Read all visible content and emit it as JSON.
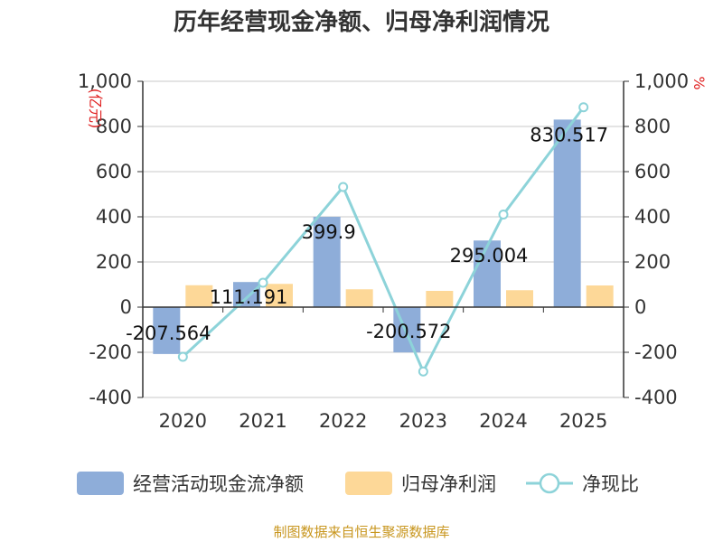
{
  "chart_data": {
    "type": "bar",
    "title": "历年经营现金净额、归母净利润情况",
    "categories": [
      "2020",
      "2021",
      "2022",
      "2023",
      "2024",
      "2025"
    ],
    "series": [
      {
        "name": "经营活动现金流净额",
        "kind": "bar",
        "axis": "left",
        "color": "#8eadd9",
        "values": [
          -207.564,
          111.191,
          399.9,
          -200.572,
          295.004,
          830.517
        ]
      },
      {
        "name": "归母净利润",
        "kind": "bar",
        "axis": "left",
        "color": "#fdd898",
        "values": [
          97,
          103,
          79,
          72,
          75,
          96
        ]
      },
      {
        "name": "净现比",
        "kind": "line",
        "axis": "right",
        "color": "#8dd3d9",
        "values": [
          -220,
          108,
          532,
          -285,
          410,
          885
        ]
      }
    ],
    "data_labels": [
      "-207.564",
      "111.191",
      "399.9",
      "-200.572",
      "295.004",
      "830.517"
    ],
    "left_axis": {
      "unit": "(亿元)",
      "ylim": [
        -400,
        1000
      ],
      "ticks": [
        "-400",
        "-200",
        "0",
        "200",
        "400",
        "600",
        "800",
        "1,000"
      ]
    },
    "right_axis": {
      "unit": "%",
      "ylim": [
        -400,
        1000
      ],
      "ticks": [
        "-400",
        "-200",
        "0",
        "200",
        "400",
        "600",
        "800",
        "1,000"
      ]
    },
    "grid": true,
    "legend_position": "bottom",
    "source_note": "制图数据来自恒生聚源数据库"
  }
}
